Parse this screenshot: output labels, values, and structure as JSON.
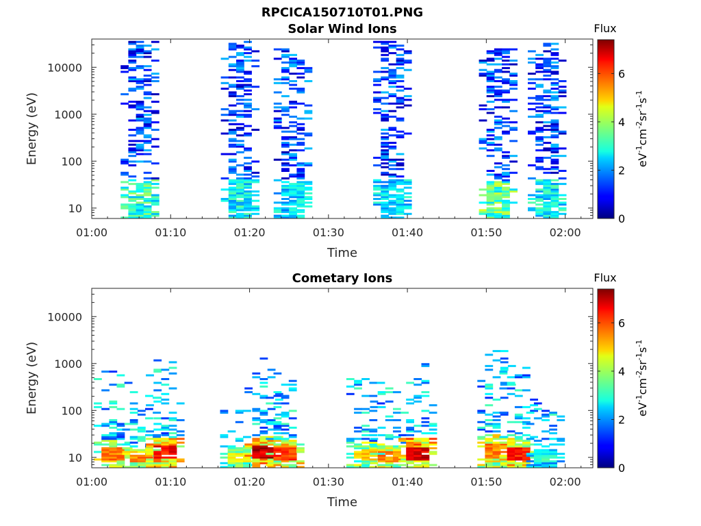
{
  "figure_title": "RPCICA150710T01.PNG",
  "colorbar": {
    "title": "Flux",
    "label_parts": [
      "eV",
      "-1",
      "cm",
      "-2",
      "sr",
      "-1",
      "s",
      "-1"
    ],
    "ticks": [
      "0",
      "2",
      "4",
      "6"
    ],
    "range": [
      0,
      7.4
    ],
    "colormap": "jet"
  },
  "chart_data": [
    {
      "type": "heatmap",
      "title": "Solar Wind Ions",
      "xlabel": "Time",
      "ylabel": "Energy (eV)",
      "x_ticks": [
        "01:00",
        "01:10",
        "01:20",
        "01:30",
        "01:40",
        "01:50",
        "02:00"
      ],
      "y_ticks": [
        "10",
        "100",
        "1000",
        "10000"
      ],
      "x_range_minutes": [
        0,
        63.5
      ],
      "y_range_eV": [
        6,
        40000
      ],
      "y_scale": "log",
      "bursts": [
        {
          "t": 5.6,
          "lo_eV": 6,
          "hi_eV": 35000,
          "peak_flux": 4.0
        },
        {
          "t": 18.3,
          "lo_eV": 6,
          "hi_eV": 35000,
          "peak_flux": 3.5
        },
        {
          "t": 25.0,
          "lo_eV": 6,
          "hi_eV": 25000,
          "peak_flux": 3.2
        },
        {
          "t": 37.6,
          "lo_eV": 6,
          "hi_eV": 35000,
          "peak_flux": 3.2
        },
        {
          "t": 51.0,
          "lo_eV": 6,
          "hi_eV": 25000,
          "peak_flux": 4.5
        },
        {
          "t": 57.2,
          "lo_eV": 6,
          "hi_eV": 35000,
          "peak_flux": 3.5
        }
      ]
    },
    {
      "type": "heatmap",
      "title": "Cometary Ions",
      "xlabel": "Time",
      "ylabel": "Energy (eV)",
      "x_ticks": [
        "01:00",
        "01:10",
        "01:20",
        "01:30",
        "01:40",
        "01:50",
        "02:00"
      ],
      "y_ticks": [
        "10",
        "100",
        "1000",
        "10000"
      ],
      "x_range_minutes": [
        0,
        63.5
      ],
      "y_range_eV": [
        6,
        40000
      ],
      "y_scale": "log",
      "bursts": [
        {
          "t": 2.2,
          "lo_eV": 6,
          "hi_eV": 800,
          "peak_flux": 6.0
        },
        {
          "t": 5.8,
          "lo_eV": 6,
          "hi_eV": 250,
          "peak_flux": 6.0
        },
        {
          "t": 8.8,
          "lo_eV": 6,
          "hi_eV": 1200,
          "peak_flux": 7.0
        },
        {
          "t": 18.2,
          "lo_eV": 6,
          "hi_eV": 250,
          "peak_flux": 5.0
        },
        {
          "t": 21.3,
          "lo_eV": 6,
          "hi_eV": 1400,
          "peak_flux": 7.4
        },
        {
          "t": 24.0,
          "lo_eV": 6,
          "hi_eV": 800,
          "peak_flux": 6.5
        },
        {
          "t": 34.2,
          "lo_eV": 6,
          "hi_eV": 500,
          "peak_flux": 5.5
        },
        {
          "t": 37.2,
          "lo_eV": 6,
          "hi_eV": 300,
          "peak_flux": 6.0
        },
        {
          "t": 40.8,
          "lo_eV": 6,
          "hi_eV": 1000,
          "peak_flux": 7.2
        },
        {
          "t": 50.8,
          "lo_eV": 6,
          "hi_eV": 2000,
          "peak_flux": 6.0
        },
        {
          "t": 53.6,
          "lo_eV": 6,
          "hi_eV": 900,
          "peak_flux": 6.8
        },
        {
          "t": 57.0,
          "lo_eV": 6,
          "hi_eV": 150,
          "peak_flux": 3.5
        }
      ]
    }
  ]
}
